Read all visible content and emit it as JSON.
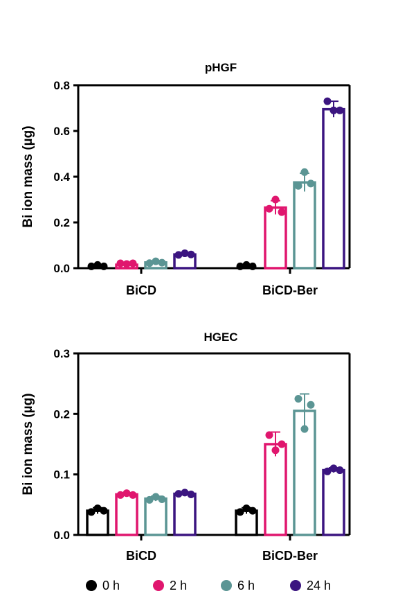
{
  "chart_data": [
    {
      "type": "bar",
      "title": "pHGF",
      "ylabel": "Bi ion mass (µg)",
      "ylim": [
        0,
        0.8
      ],
      "yticks": [
        "0.0",
        "0.2",
        "0.4",
        "0.6",
        "0.8"
      ],
      "categories": [
        "BiCD",
        "BiCD-Ber"
      ],
      "series": [
        {
          "name": "0 h",
          "color": "#000000",
          "values": [
            0.0,
            0.0
          ],
          "error": [
            0,
            0
          ],
          "points": [
            [
              0.002,
              0.008,
              0.002
            ],
            [
              0.002,
              0.008,
              0.002
            ]
          ]
        },
        {
          "name": "2 h",
          "color": "#e0166e",
          "values": [
            0.015,
            0.265
          ],
          "error": [
            0.005,
            0.03
          ],
          "points": [
            [
              0.015,
              0.018,
              0.015
            ],
            [
              0.26,
              0.3,
              0.245
            ]
          ]
        },
        {
          "name": "6 h",
          "color": "#5b9594",
          "values": [
            0.025,
            0.375
          ],
          "error": [
            0.005,
            0.04
          ],
          "points": [
            [
              0.022,
              0.03,
              0.024
            ],
            [
              0.36,
              0.42,
              0.37
            ]
          ]
        },
        {
          "name": "24 h",
          "color": "#3b1580",
          "values": [
            0.06,
            0.695
          ],
          "error": [
            0.005,
            0.035
          ],
          "points": [
            [
              0.058,
              0.065,
              0.06
            ],
            [
              0.73,
              0.69,
              0.69
            ]
          ]
        }
      ],
      "grid": false
    },
    {
      "type": "bar",
      "title": "HGEC",
      "ylabel": "Bi ion mass (µg)",
      "ylim": [
        0,
        0.3
      ],
      "yticks": [
        "0.0",
        "0.1",
        "0.2",
        "0.3"
      ],
      "categories": [
        "BiCD",
        "BiCD-Ber"
      ],
      "series": [
        {
          "name": "0 h",
          "color": "#000000",
          "values": [
            0.04,
            0.04
          ],
          "error": [
            0.005,
            0.005
          ],
          "points": [
            [
              0.038,
              0.044,
              0.04
            ],
            [
              0.038,
              0.044,
              0.04
            ]
          ]
        },
        {
          "name": "2 h",
          "color": "#e0166e",
          "values": [
            0.067,
            0.15
          ],
          "error": [
            0.003,
            0.02
          ],
          "points": [
            [
              0.066,
              0.069,
              0.066
            ],
            [
              0.165,
              0.14,
              0.15
            ]
          ]
        },
        {
          "name": "6 h",
          "color": "#5b9594",
          "values": [
            0.06,
            0.205
          ],
          "error": [
            0.004,
            0.028
          ],
          "points": [
            [
              0.058,
              0.063,
              0.059
            ],
            [
              0.225,
              0.175,
              0.215
            ]
          ]
        },
        {
          "name": "24 h",
          "color": "#3b1580",
          "values": [
            0.068,
            0.107
          ],
          "error": [
            0.003,
            0.004
          ],
          "points": [
            [
              0.068,
              0.07,
              0.067
            ],
            [
              0.105,
              0.11,
              0.107
            ]
          ]
        }
      ],
      "grid": false,
      "legend": "bottom"
    }
  ]
}
